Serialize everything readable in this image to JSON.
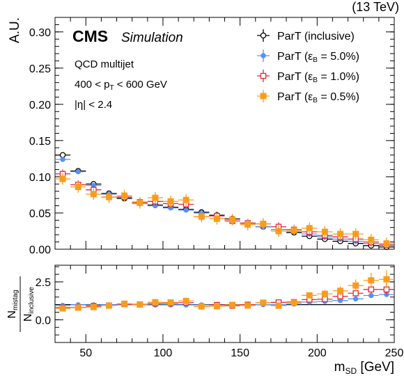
{
  "header": {
    "energy_label": "(13 TeV)"
  },
  "cms": {
    "logo": "CMS",
    "sublabel": "Simulation"
  },
  "annotations": {
    "sample": "QCD multijet",
    "pt_lo": "400",
    "pt_sym": "p",
    "pt_sub": "T",
    "pt_hi": "600 GeV",
    "eta_cut": "|η| < 2.4"
  },
  "legend": {
    "items": [
      {
        "text": "ParT (inclusive)"
      },
      {
        "text": "ParT (ε",
        "sub": "B",
        "tail": " = 5.0%)"
      },
      {
        "text": "ParT (ε",
        "sub": "B",
        "tail": " = 1.0%)"
      },
      {
        "text": "ParT (ε",
        "sub": "B",
        "tail": " = 0.5%)"
      }
    ]
  },
  "axes": {
    "ylabel_top": "A.U.",
    "ylabel_bottom_num": "N",
    "ylabel_bottom_num_sub": "mistag",
    "ylabel_bottom_den": "N",
    "ylabel_bottom_den_sub": "inclusive",
    "xlabel_sym": "m",
    "xlabel_sub": "SD",
    "xlabel_unit": " [GeV]"
  },
  "chart_data": [
    {
      "type": "scatter",
      "panel": "main",
      "xlim": [
        30,
        250
      ],
      "ylim": [
        0,
        0.32
      ],
      "x_ticks": [
        50,
        100,
        150,
        200,
        250
      ],
      "y_ticks": [
        0.0,
        0.05,
        0.1,
        0.15,
        0.2,
        0.25,
        0.3
      ],
      "y_tick_labels": [
        "0.00",
        "0.05",
        "0.10",
        "0.15",
        "0.20",
        "0.25",
        "0.30"
      ],
      "grid": false,
      "legend_position": "top-right",
      "bin_edges": [
        30,
        40,
        50,
        60,
        70,
        80,
        90,
        100,
        110,
        120,
        130,
        140,
        150,
        160,
        170,
        180,
        190,
        200,
        210,
        220,
        230,
        240,
        250
      ],
      "series": [
        {
          "name": "ParT (inclusive)",
          "color": "#000000",
          "marker": "open-circle",
          "values": [
            0.13,
            0.108,
            0.09,
            0.077,
            0.07,
            0.064,
            0.061,
            0.058,
            0.055,
            0.051,
            0.047,
            0.042,
            0.036,
            0.031,
            0.027,
            0.023,
            0.018,
            0.014,
            0.011,
            0.008,
            0.005,
            0.003
          ],
          "errors": [
            0.003,
            0.002,
            0.002,
            0.002,
            0.002,
            0.002,
            0.002,
            0.002,
            0.002,
            0.002,
            0.002,
            0.002,
            0.002,
            0.002,
            0.002,
            0.002,
            0.002,
            0.002,
            0.002,
            0.002,
            0.002,
            0.002
          ]
        },
        {
          "name": "ParT (ε_B = 5.0%)",
          "color": "#5790fc",
          "marker": "filled-circle",
          "values": [
            0.124,
            0.107,
            0.088,
            0.076,
            0.071,
            0.063,
            0.06,
            0.057,
            0.054,
            0.05,
            0.046,
            0.041,
            0.036,
            0.031,
            0.027,
            0.024,
            0.021,
            0.017,
            0.014,
            0.011,
            0.008,
            0.005
          ],
          "errors": [
            0.003,
            0.003,
            0.003,
            0.003,
            0.003,
            0.003,
            0.003,
            0.003,
            0.003,
            0.003,
            0.003,
            0.003,
            0.003,
            0.003,
            0.003,
            0.003,
            0.003,
            0.003,
            0.003,
            0.003,
            0.003,
            0.003
          ]
        },
        {
          "name": "ParT (ε_B = 1.0%)",
          "color": "#e42536",
          "marker": "open-square",
          "values": [
            0.104,
            0.089,
            0.082,
            0.072,
            0.072,
            0.065,
            0.066,
            0.063,
            0.062,
            0.045,
            0.046,
            0.039,
            0.036,
            0.035,
            0.031,
            0.027,
            0.024,
            0.019,
            0.017,
            0.014,
            0.01,
            0.006
          ],
          "errors": [
            0.006,
            0.006,
            0.006,
            0.006,
            0.006,
            0.006,
            0.006,
            0.006,
            0.006,
            0.006,
            0.006,
            0.006,
            0.006,
            0.006,
            0.006,
            0.006,
            0.006,
            0.006,
            0.006,
            0.006,
            0.006,
            0.006
          ]
        },
        {
          "name": "ParT (ε_B = 0.5%)",
          "color": "#f89c20",
          "marker": "filled-square",
          "values": [
            0.097,
            0.086,
            0.076,
            0.072,
            0.074,
            0.064,
            0.071,
            0.066,
            0.068,
            0.045,
            0.042,
            0.041,
            0.034,
            0.035,
            0.025,
            0.026,
            0.029,
            0.024,
            0.021,
            0.021,
            0.013,
            0.008
          ],
          "errors": [
            0.008,
            0.008,
            0.008,
            0.008,
            0.008,
            0.008,
            0.008,
            0.008,
            0.008,
            0.008,
            0.008,
            0.008,
            0.008,
            0.008,
            0.008,
            0.008,
            0.008,
            0.008,
            0.008,
            0.008,
            0.008,
            0.008
          ]
        }
      ]
    },
    {
      "type": "scatter",
      "panel": "ratio",
      "xlim": [
        30,
        250
      ],
      "ylim": [
        -1.5,
        3.6
      ],
      "x_ticks": [
        50,
        100,
        150,
        200,
        250
      ],
      "x_tick_labels": [
        "50",
        "100",
        "150",
        "200",
        "250"
      ],
      "y_ticks": [
        0.0,
        2.5
      ],
      "y_tick_labels": [
        "0.0",
        "2.5"
      ],
      "reference_line": 1.0,
      "grid": false,
      "bin_edges": [
        30,
        40,
        50,
        60,
        70,
        80,
        90,
        100,
        110,
        120,
        130,
        140,
        150,
        160,
        170,
        180,
        190,
        200,
        210,
        220,
        230,
        240,
        250
      ],
      "series": [
        {
          "name": "ParT (ε_B = 5.0%)",
          "color": "#5790fc",
          "marker": "filled-circle",
          "values": [
            0.95,
            0.99,
            0.98,
            0.99,
            1.01,
            0.98,
            0.98,
            0.98,
            0.98,
            0.98,
            0.98,
            0.98,
            1.0,
            1.0,
            1.0,
            1.04,
            1.17,
            1.21,
            1.27,
            1.38,
            1.6,
            1.67
          ],
          "errors": [
            0.05,
            0.05,
            0.05,
            0.05,
            0.05,
            0.05,
            0.05,
            0.05,
            0.05,
            0.05,
            0.05,
            0.05,
            0.05,
            0.05,
            0.06,
            0.07,
            0.08,
            0.08,
            0.09,
            0.1,
            0.12,
            0.15
          ]
        },
        {
          "name": "ParT (ε_B = 1.0%)",
          "color": "#e42536",
          "marker": "open-square",
          "values": [
            0.8,
            0.82,
            0.91,
            0.94,
            1.03,
            1.02,
            1.08,
            1.09,
            1.13,
            0.88,
            0.98,
            0.93,
            1.0,
            1.13,
            1.15,
            1.17,
            1.33,
            1.36,
            1.55,
            1.75,
            2.0,
            2.0
          ],
          "errors": [
            0.06,
            0.06,
            0.06,
            0.06,
            0.06,
            0.06,
            0.06,
            0.06,
            0.06,
            0.06,
            0.06,
            0.06,
            0.07,
            0.08,
            0.09,
            0.1,
            0.12,
            0.14,
            0.16,
            0.2,
            0.25,
            0.35
          ]
        },
        {
          "name": "ParT (ε_B = 0.5%)",
          "color": "#f89c20",
          "marker": "filled-square",
          "values": [
            0.75,
            0.8,
            0.84,
            0.94,
            1.06,
            1.0,
            1.16,
            1.14,
            1.24,
            0.88,
            0.89,
            0.98,
            0.94,
            1.13,
            0.93,
            1.13,
            1.61,
            1.71,
            1.91,
            2.26,
            2.6,
            2.67
          ],
          "errors": [
            0.08,
            0.08,
            0.08,
            0.08,
            0.08,
            0.08,
            0.08,
            0.08,
            0.08,
            0.1,
            0.1,
            0.1,
            0.1,
            0.12,
            0.15,
            0.17,
            0.2,
            0.25,
            0.3,
            0.4,
            0.5,
            0.6
          ]
        }
      ]
    }
  ]
}
